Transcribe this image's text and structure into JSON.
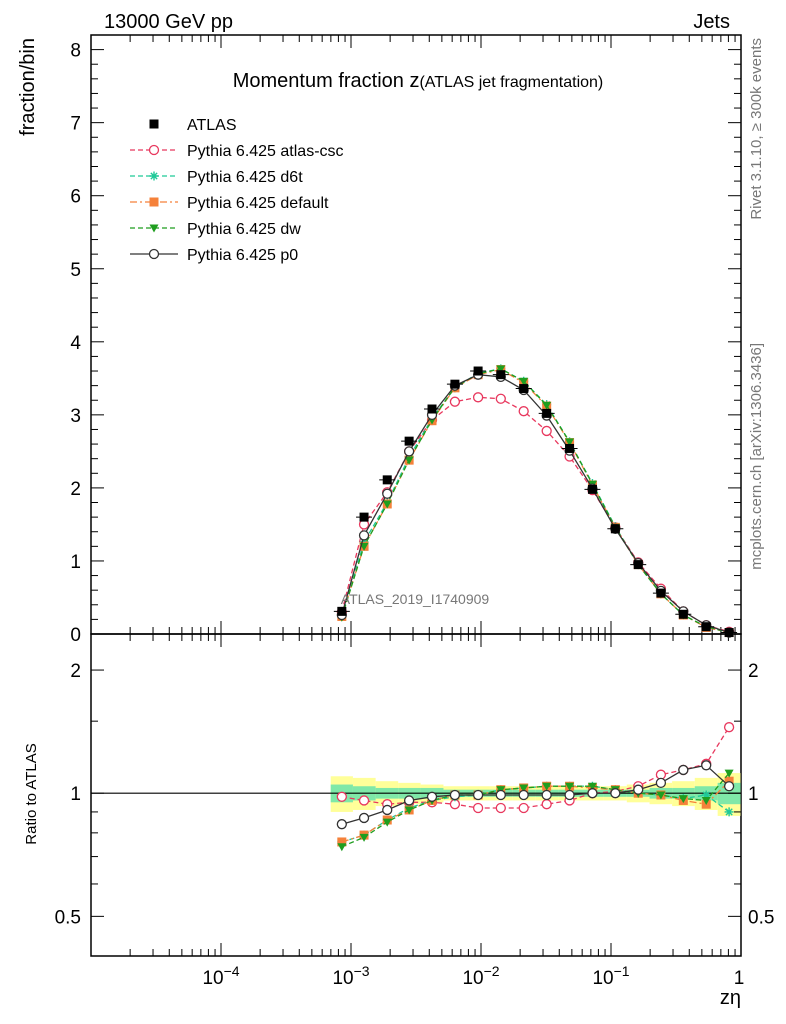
{
  "header": {
    "left": "13000 GeV pp",
    "right": "Jets"
  },
  "side_text": {
    "rivet": "Rivet 3.1.10, ≥ 300k events",
    "site": "mcplots.cern.ch [arXiv:1306.3436]"
  },
  "chart_data": {
    "type": "scatter",
    "title_main": "Momentum fraction z",
    "title_sub": "(ATLAS jet fragmentation)",
    "watermark": "ATLAS_2019_I1740909",
    "xlabel": "zη",
    "ylabel": "fraction/bin",
    "ratio_ylabel": "Ratio to ATLAS",
    "xscale": "log",
    "xlim": [
      1e-05,
      1
    ],
    "ylim": [
      0,
      8.2
    ],
    "ratio_ylim": [
      0.4,
      2.45
    ],
    "ratio_scale": "log",
    "x_ticks": [
      {
        "value": 0.0001,
        "base": "10",
        "exp": "−4"
      },
      {
        "value": 0.001,
        "base": "10",
        "exp": "−3"
      },
      {
        "value": 0.01,
        "base": "10",
        "exp": "−2"
      },
      {
        "value": 0.1,
        "base": "10",
        "exp": "−1"
      },
      {
        "value": 1,
        "label": "1"
      }
    ],
    "y_ticks": [
      "0",
      "1",
      "2",
      "3",
      "4",
      "5",
      "6",
      "7",
      "8"
    ],
    "ratio_ticks": [
      {
        "value": 0.5,
        "label": "0.5"
      },
      {
        "value": 1,
        "label": "1"
      },
      {
        "value": 2,
        "label": "2"
      }
    ],
    "legend_position": "top-left",
    "x": [
      0.00085,
      0.00126,
      0.0019,
      0.0028,
      0.0042,
      0.0063,
      0.0095,
      0.0142,
      0.0213,
      0.032,
      0.048,
      0.072,
      0.108,
      0.162,
      0.242,
      0.36,
      0.54,
      0.81
    ],
    "series": [
      {
        "name": "ATLAS",
        "color": "#000000",
        "marker": "square",
        "line": "none",
        "values": [
          0.31,
          1.6,
          2.11,
          2.64,
          3.08,
          3.42,
          3.6,
          3.55,
          3.36,
          3.02,
          2.54,
          1.98,
          1.44,
          0.95,
          0.56,
          0.27,
          0.1,
          0.02
        ]
      },
      {
        "name": "Pythia 6.425 atlas-csc",
        "color": "#e8385e",
        "marker": "open-circle",
        "line": "dashed",
        "values": [
          0.3,
          1.5,
          1.94,
          2.5,
          2.93,
          3.18,
          3.24,
          3.22,
          3.05,
          2.78,
          2.43,
          1.97,
          1.46,
          0.98,
          0.62,
          0.31,
          0.12,
          0.03
        ]
      },
      {
        "name": "Pythia 6.425 d6t",
        "color": "#1fc998",
        "marker": "asterisk",
        "line": "dashed",
        "values": [
          0.24,
          1.26,
          1.8,
          2.42,
          2.95,
          3.37,
          3.57,
          3.63,
          3.46,
          3.14,
          2.63,
          2.06,
          1.47,
          0.95,
          0.55,
          0.26,
          0.1,
          0.02
        ]
      },
      {
        "name": "Pythia 6.425 default",
        "color": "#f5813a",
        "marker": "square",
        "line": "dashdot",
        "values": [
          0.24,
          1.2,
          1.78,
          2.38,
          2.92,
          3.37,
          3.55,
          3.62,
          3.44,
          3.12,
          2.62,
          2.04,
          1.46,
          0.95,
          0.55,
          0.26,
          0.09,
          0.02
        ]
      },
      {
        "name": "Pythia 6.425 dw",
        "color": "#1f9e1f",
        "marker": "triangle-down",
        "line": "dashed",
        "values": [
          0.23,
          1.2,
          1.78,
          2.38,
          2.93,
          3.38,
          3.56,
          3.63,
          3.46,
          3.13,
          2.63,
          2.05,
          1.46,
          0.95,
          0.55,
          0.26,
          0.1,
          0.02
        ]
      },
      {
        "name": "Pythia 6.425 p0",
        "color": "#333333",
        "marker": "open-circle",
        "line": "solid",
        "values": [
          0.26,
          1.35,
          1.92,
          2.5,
          3.0,
          3.4,
          3.55,
          3.52,
          3.34,
          2.99,
          2.51,
          1.99,
          1.44,
          0.97,
          0.59,
          0.31,
          0.12,
          0.02
        ]
      }
    ],
    "ratio_band": {
      "inner": [
        0.05,
        0.04,
        0.03,
        0.03,
        0.03,
        0.02,
        0.02,
        0.02,
        0.02,
        0.02,
        0.02,
        0.02,
        0.02,
        0.02,
        0.03,
        0.03,
        0.04,
        0.06
      ],
      "outer": [
        0.1,
        0.09,
        0.07,
        0.06,
        0.05,
        0.04,
        0.04,
        0.04,
        0.04,
        0.04,
        0.04,
        0.04,
        0.04,
        0.05,
        0.06,
        0.07,
        0.09,
        0.12
      ],
      "inner_color": "#7fe8a8",
      "outer_color": "#ffff99"
    },
    "ratios": [
      [
        0.98,
        0.96,
        0.94,
        0.95,
        0.95,
        0.94,
        0.92,
        0.92,
        0.92,
        0.94,
        0.96,
        1.0,
        1.01,
        1.04,
        1.11,
        1.14,
        1.18,
        1.45
      ],
      [
        0.76,
        0.79,
        0.86,
        0.92,
        0.96,
        0.98,
        0.99,
        1.02,
        1.03,
        1.04,
        1.04,
        1.04,
        1.02,
        1.0,
        0.99,
        0.97,
        0.99,
        0.9
      ],
      [
        0.76,
        0.79,
        0.86,
        0.91,
        0.96,
        0.99,
        0.99,
        1.02,
        1.03,
        1.04,
        1.04,
        1.03,
        1.02,
        1.0,
        0.99,
        0.96,
        0.94,
        1.07
      ],
      [
        0.74,
        0.78,
        0.85,
        0.91,
        0.96,
        0.99,
        0.99,
        1.02,
        1.03,
        1.04,
        1.04,
        1.04,
        1.02,
        1.0,
        0.99,
        0.97,
        0.96,
        1.12
      ],
      [
        0.84,
        0.87,
        0.91,
        0.96,
        0.98,
        0.99,
        0.99,
        0.99,
        0.99,
        0.99,
        0.99,
        1.0,
        1.0,
        1.02,
        1.06,
        1.14,
        1.17,
        1.04
      ]
    ]
  }
}
